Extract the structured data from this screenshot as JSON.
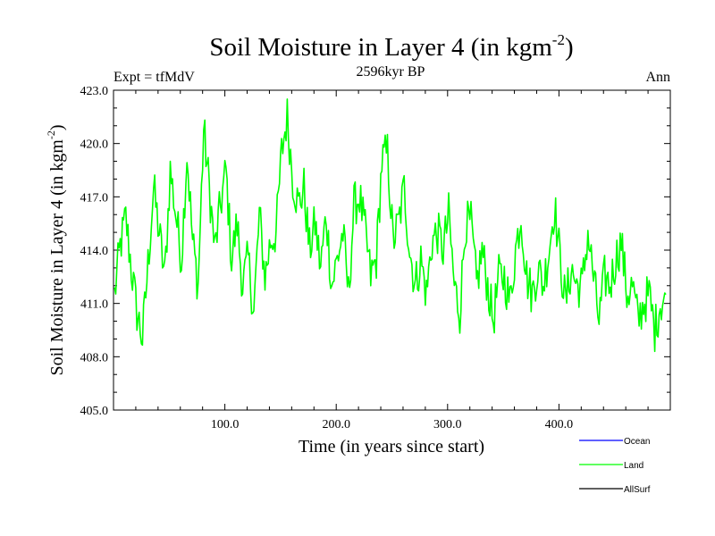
{
  "chart_data": {
    "type": "line",
    "title": "Soil Moisture in Layer 4 (in kgm",
    "title_superscript": "-2",
    "title_suffix": ")",
    "subtitle_left": "Expt = tfMdV",
    "subtitle_center": "2596kyr BP",
    "subtitle_right": "Ann",
    "xlabel": "Time (in years since start)",
    "ylabel": "Soil Moisture in Layer 4 (in kgm",
    "ylabel_superscript": "-2",
    "ylabel_suffix": ")",
    "xlim": [
      0,
      500
    ],
    "ylim": [
      405,
      423
    ],
    "x_ticks": [
      100,
      200,
      300,
      400
    ],
    "x_tick_labels": [
      "100.0",
      "200.0",
      "300.0",
      "400.0"
    ],
    "y_ticks": [
      405,
      408,
      411,
      414,
      417,
      420,
      423
    ],
    "y_tick_labels": [
      "405.0",
      "408.0",
      "411.0",
      "414.0",
      "417.0",
      "420.0",
      "423.0"
    ],
    "legend": [
      {
        "name": "Ocean",
        "color": "#0000ff"
      },
      {
        "name": "Land",
        "color": "#00ff00"
      },
      {
        "name": "AllSurf",
        "color": "#000000"
      }
    ],
    "series": [
      {
        "name": "Land",
        "color": "#00ff00",
        "x_start": 1,
        "x_step": 5,
        "values": [
          411.5,
          414.2,
          415.8,
          413.0,
          410.5,
          409.0,
          413.2,
          417.5,
          415.0,
          412.5,
          418.5,
          416.0,
          413.5,
          419.5,
          414.5,
          412.0,
          420.8,
          417.5,
          414.0,
          416.5,
          418.5,
          413.5,
          415.5,
          412.0,
          413.5,
          410.5,
          416.0,
          412.5,
          414.5,
          415.0,
          419.5,
          421.5,
          418.0,
          416.5,
          417.5,
          414.0,
          415.5,
          413.0,
          416.0,
          412.0,
          413.5,
          415.0,
          411.5,
          416.5,
          417.0,
          415.0,
          412.5,
          413.5,
          419.0,
          419.5,
          414.5,
          415.5,
          417.5,
          414.0,
          412.0,
          413.5,
          411.5,
          414.5,
          415.0,
          414.0,
          416.0,
          412.0,
          410.5,
          415.5,
          415.5,
          412.0,
          414.0,
          412.0,
          410.0,
          412.5,
          412.5,
          411.0,
          414.0,
          416.0,
          412.5,
          411.5,
          413.0,
          412.0,
          414.0,
          416.5,
          413.5,
          411.0,
          413.0,
          412.0,
          412.0,
          415.0,
          412.5,
          410.0,
          412.5,
          412.0,
          413.5,
          414.5,
          411.5,
          412.0,
          410.0,
          411.0,
          411.5,
          409.5,
          411.0,
          411.5
        ]
      }
    ]
  }
}
